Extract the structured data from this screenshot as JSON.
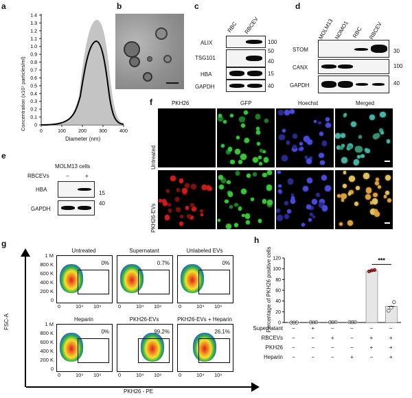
{
  "panel_labels": {
    "a": "a",
    "b": "b",
    "c": "c",
    "d": "d",
    "e": "e",
    "f": "f",
    "g": "g",
    "h": "h"
  },
  "panel_a": {
    "ylabel": "Concentration (x10⁷ particles/ml)",
    "xlabel": "Diameter (nm)",
    "yticks": [
      "0",
      "0.1",
      "0.2",
      "0.3",
      "0.4",
      "0.5",
      "0.6",
      "0.7",
      "0.8",
      "0.9",
      "1.0",
      "1.1",
      "1.2",
      "1.3",
      "1.4"
    ],
    "xticks": [
      "0",
      "100",
      "200",
      "300",
      "400"
    ]
  },
  "panel_c": {
    "columns": [
      "RBC",
      "RBCEV"
    ],
    "rows": [
      {
        "name": "ALIX",
        "mw": "100"
      },
      {
        "name": "TSG101",
        "mw": "50"
      },
      {
        "name": "",
        "mw": "40"
      },
      {
        "name": "HBA",
        "mw": "15"
      },
      {
        "name": "GAPDH",
        "mw": "40"
      }
    ]
  },
  "panel_d": {
    "columns": [
      "MOLM13",
      "NOMO1",
      "RBC",
      "RBCEV"
    ],
    "rows": [
      {
        "name": "STOM",
        "mw": "30"
      },
      {
        "name": "CANX",
        "mw": "100"
      },
      {
        "name": "GAPDH",
        "mw": "40"
      }
    ]
  },
  "panel_e": {
    "title": "MOLM13 cells",
    "treatment_label": "RBCEVs",
    "signs": [
      "−",
      "+"
    ],
    "rows": [
      {
        "name": "HBA",
        "mw": "15"
      },
      {
        "name": "GAPDH",
        "mw": "40"
      }
    ]
  },
  "panel_f": {
    "columns": [
      "PKH26",
      "GFP",
      "Hoechst",
      "Merged"
    ],
    "rows": [
      "Untreated",
      "PKH26-EVs"
    ]
  },
  "panel_g": {
    "ylabel": "FSC-A",
    "xlabel": "PKH26 - PE",
    "yticks": [
      "1 M",
      "800 K",
      "600 K",
      "400 K",
      "200 K",
      "0"
    ],
    "xticks": [
      "0",
      "10⁴",
      "10⁶"
    ],
    "plots": [
      {
        "title": "Untreated",
        "pct": "0%"
      },
      {
        "title": "Supernatant",
        "pct": "0.7%"
      },
      {
        "title": "Unlabeled EVs",
        "pct": "0%"
      },
      {
        "title": "Heparin",
        "pct": "0%"
      },
      {
        "title": "PKH26-EVs",
        "pct": "99.2%"
      },
      {
        "title": "PKH26-EVs + Heparin",
        "pct": "26.1%"
      }
    ]
  },
  "chart_data": {
    "type": "bar",
    "categories": [
      "Untreated",
      "Supernatant",
      "Unlabeled EVs",
      "Heparin",
      "PKH26-EVs",
      "PKH26-EVs + Heparin"
    ],
    "values": [
      0.3,
      0.5,
      0.6,
      0.6,
      96,
      30
    ],
    "points": [
      [
        0,
        0,
        0
      ],
      [
        0.3,
        0.4,
        0.5
      ],
      [
        0.5,
        0.6,
        0.7
      ],
      [
        0.6,
        0.5,
        0.8
      ],
      [
        95,
        97,
        98
      ],
      [
        22,
        28,
        38
      ]
    ],
    "ylabel": "Percentage of PKH26 positive cells",
    "ylim": [
      0,
      120
    ],
    "yticks": [
      "0",
      "20",
      "40",
      "60",
      "80",
      "100",
      "120"
    ],
    "significance": "***",
    "condition_rows": [
      {
        "name": "Supernatant",
        "signs": [
          "−",
          "+",
          "−",
          "−",
          "−",
          "−"
        ]
      },
      {
        "name": "RBCEVs",
        "signs": [
          "−",
          "−",
          "+",
          "−",
          "+",
          "+"
        ]
      },
      {
        "name": "PKH26",
        "signs": [
          "−",
          "−",
          "−",
          "−",
          "+",
          "+"
        ]
      },
      {
        "name": "Heparin",
        "signs": [
          "−",
          "−",
          "−",
          "+",
          "−",
          "+"
        ]
      }
    ],
    "bar_color": "#e6e6e6",
    "point_colors": [
      "#d93030",
      "#ffffff"
    ]
  }
}
